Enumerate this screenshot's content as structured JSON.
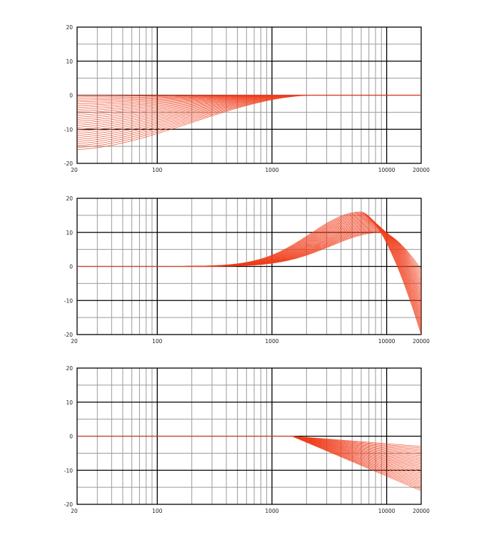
{
  "colors": {
    "curve": "#f03c1a",
    "major_grid": "#000000",
    "minor_grid": "#9a9a9a",
    "background": "#ffffff"
  },
  "chart_data": [
    {
      "type": "line",
      "variant": "family of low-shelf gain curves",
      "x_scale": "log",
      "xlim": [
        20,
        20000
      ],
      "ylim": [
        -20,
        20
      ],
      "x_ticks": [
        "20",
        "100",
        "1000",
        "10000",
        "20000"
      ],
      "y_ticks": [
        "20",
        "10",
        "0",
        "-10",
        "-20"
      ],
      "grid": true,
      "series_count": 29,
      "series": [
        {
          "shape": "low_shelf",
          "corner_hz": 200,
          "gain_db": -16
        },
        {
          "shape": "low_shelf",
          "corner_hz": 60,
          "gain_db": 0
        }
      ]
    },
    {
      "type": "line",
      "variant": "family of high-frequency peak curves",
      "x_scale": "log",
      "xlim": [
        20,
        20000
      ],
      "ylim": [
        -20,
        20
      ],
      "x_ticks": [
        "20",
        "100",
        "1000",
        "10000",
        "20000"
      ],
      "y_ticks": [
        "20",
        "10",
        "0",
        "-10",
        "-20"
      ],
      "grid": true,
      "series_count": 29,
      "series": [
        {
          "shape": "peak_rolloff",
          "peak_hz": 6000,
          "peak_db": 16,
          "end_db": -20
        },
        {
          "shape": "peak_rolloff",
          "peak_hz": 9000,
          "peak_db": 10,
          "end_db": -1
        }
      ]
    },
    {
      "type": "line",
      "variant": "family of high-frequency cut curves",
      "x_scale": "log",
      "xlim": [
        20,
        20000
      ],
      "ylim": [
        -20,
        20
      ],
      "x_ticks": [
        "20",
        "100",
        "1000",
        "10000",
        "20000"
      ],
      "y_ticks": [
        "20",
        "10",
        "0",
        "-10",
        "-20"
      ],
      "grid": true,
      "series_count": 29,
      "series": [
        {
          "shape": "linear_cut",
          "knee_hz": 1500,
          "end_db": -16
        },
        {
          "shape": "linear_cut",
          "knee_hz": 1500,
          "end_db": -3
        }
      ]
    }
  ]
}
